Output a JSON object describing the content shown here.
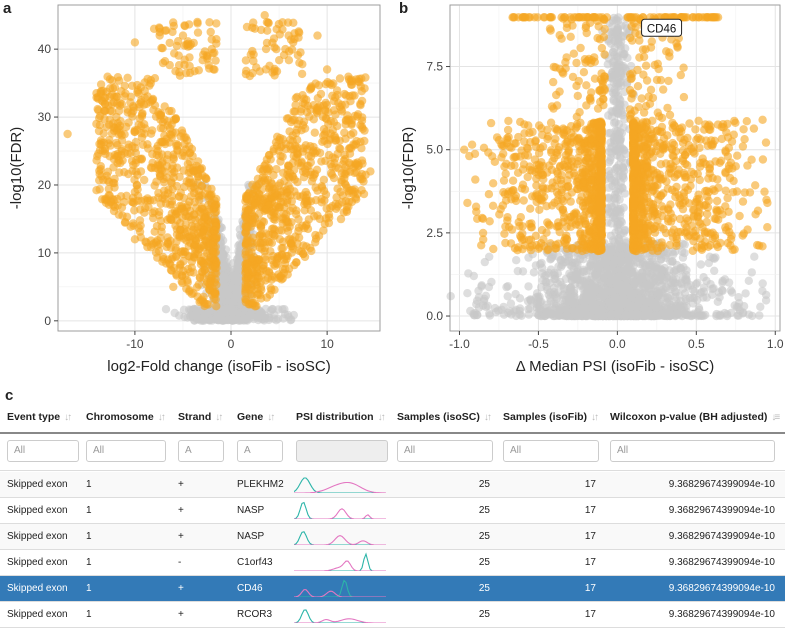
{
  "panels": {
    "a": "a",
    "b": "b",
    "c": "c"
  },
  "highlight_color": "#F5A623",
  "bg_color": "#C8C8C8",
  "chart_data": [
    {
      "type": "scatter",
      "panel": "a",
      "xlabel": "log2-Fold change (isoFib - isoSC)",
      "ylabel": "-log10(FDR)",
      "xlim": [
        -18,
        15.5
      ],
      "ylim": [
        -1.5,
        46.5
      ],
      "xticks": [
        -10,
        0,
        10
      ],
      "yticks": [
        0,
        10,
        20,
        30,
        40
      ],
      "grid": true,
      "series": [
        {
          "color": "#C8C8C8",
          "values": []
        },
        {
          "color": "#F5A623",
          "values": []
        }
      ],
      "sample_points": [
        [
          -17,
          27.5
        ],
        [
          -14,
          29
        ],
        [
          -10,
          41
        ],
        [
          -8,
          43
        ],
        [
          -5,
          42
        ],
        [
          -3.5,
          44
        ],
        [
          -2,
          40
        ],
        [
          3.5,
          45
        ],
        [
          6,
          42
        ],
        [
          6.6,
          41.5
        ],
        [
          9,
          42
        ],
        [
          10,
          37
        ],
        [
          12,
          29.5
        ],
        [
          13,
          26
        ],
        [
          14,
          21.5
        ],
        [
          14.5,
          22
        ],
        [
          -13,
          18
        ],
        [
          -10,
          12
        ],
        [
          -6,
          5
        ],
        [
          12,
          22
        ]
      ]
    },
    {
      "type": "scatter",
      "panel": "b",
      "xlabel": "Δ Median PSI (isoFib - isoSC)",
      "ylabel": "-log10(FDR)",
      "xlim": [
        -1.06,
        1.03
      ],
      "ylim": [
        -0.45,
        9.35
      ],
      "xticks": [
        -1.0,
        -0.5,
        0.0,
        0.5,
        1.0
      ],
      "xtick_labels": [
        "-1.0",
        "-0.5",
        "0.0",
        "0.5",
        "1.0"
      ],
      "yticks": [
        0.0,
        2.5,
        5.0,
        7.5
      ],
      "ytick_labels": [
        "0.0",
        "2.5",
        "5.0",
        "7.5"
      ],
      "grid": true,
      "annotations": [
        {
          "label": "CD46",
          "x": 0.28,
          "y": 8.65
        }
      ],
      "sample_points": [
        [
          -0.97,
          5.0
        ],
        [
          -0.95,
          3.4
        ],
        [
          -0.9,
          4.1
        ],
        [
          -0.85,
          2.3
        ],
        [
          -0.7,
          5.2
        ],
        [
          0.55,
          5.6
        ],
        [
          0.7,
          4.8
        ],
        [
          0.75,
          4.5
        ],
        [
          0.92,
          5.9
        ],
        [
          0.95,
          3.4
        ],
        [
          0.85,
          4.7
        ],
        [
          -0.8,
          5.8
        ]
      ]
    },
    {
      "type": "table",
      "panel": "c",
      "columns": [
        {
          "label": "Event type",
          "filter": "All"
        },
        {
          "label": "Chromosome",
          "filter": "All"
        },
        {
          "label": "Strand",
          "filter": "A"
        },
        {
          "label": "Gene",
          "filter": "A"
        },
        {
          "label": "PSI distribution",
          "filter": ""
        },
        {
          "label": "Samples (isoSC)",
          "filter": "All"
        },
        {
          "label": "Samples (isoFib)",
          "filter": "All"
        },
        {
          "label": "Wilcoxon p-value (BH adjusted)",
          "filter": "All"
        }
      ],
      "rows": [
        {
          "event": "Skipped exon",
          "chrom": "1",
          "strand": "+",
          "gene": "PLEKHM2",
          "sc": "25",
          "fib": "17",
          "p": "9.36829674399094e-10"
        },
        {
          "event": "Skipped exon",
          "chrom": "1",
          "strand": "+",
          "gene": "NASP",
          "sc": "25",
          "fib": "17",
          "p": "9.36829674399094e-10"
        },
        {
          "event": "Skipped exon",
          "chrom": "1",
          "strand": "+",
          "gene": "NASP",
          "sc": "25",
          "fib": "17",
          "p": "9.36829674399094e-10"
        },
        {
          "event": "Skipped exon",
          "chrom": "1",
          "strand": "-",
          "gene": "C1orf43",
          "sc": "25",
          "fib": "17",
          "p": "9.36829674399094e-10"
        },
        {
          "event": "Skipped exon",
          "chrom": "1",
          "strand": "+",
          "gene": "CD46",
          "sc": "25",
          "fib": "17",
          "p": "9.36829674399094e-10",
          "selected": true
        },
        {
          "event": "Skipped exon",
          "chrom": "1",
          "strand": "+",
          "gene": "RCOR3",
          "sc": "25",
          "fib": "17",
          "p": "9.36829674399094e-10"
        }
      ]
    }
  ]
}
